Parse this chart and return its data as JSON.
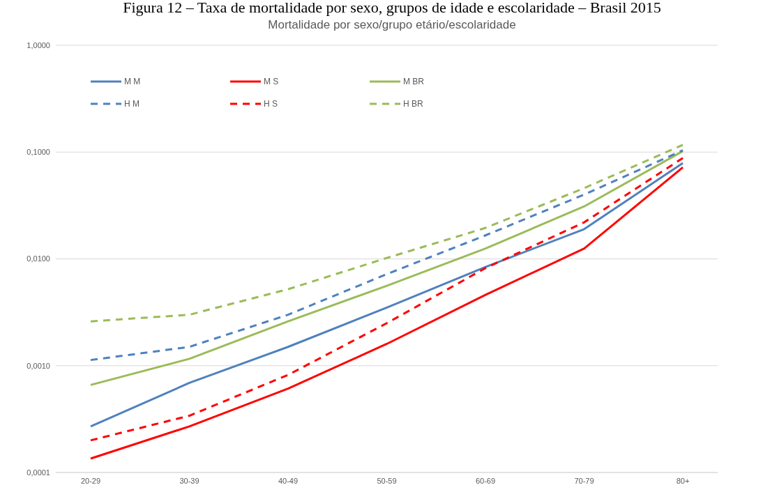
{
  "chart_data": {
    "type": "line",
    "title": "Figura 12 – Taxa de mortalidade por sexo, grupos de idade e escolaridade – Brasil 2015",
    "subtitle": "Mortalidade por sexo/grupo etário/escolaridade",
    "categories": [
      "20-29",
      "30-39",
      "40-49",
      "50-59",
      "60-69",
      "70-79",
      "80+"
    ],
    "log": "y",
    "ylim": [
      0.0001,
      1
    ],
    "yticks": [
      {
        "value": 0.0001,
        "label": "0,0001"
      },
      {
        "value": 0.001,
        "label": "0,0010"
      },
      {
        "value": 0.01,
        "label": "0,0100"
      },
      {
        "value": 0.1,
        "label": "0,1000"
      },
      {
        "value": 1,
        "label": "1,0000"
      }
    ],
    "grid": "y",
    "legend": "top left",
    "marker": "none",
    "series": [
      {
        "name": "M M",
        "color": "#4f81bd",
        "line_style": "solid",
        "values": [
          0.00027,
          0.00069,
          0.0015,
          0.0035,
          0.0084,
          0.019,
          0.079
        ]
      },
      {
        "name": "M S",
        "color": "#ff0000",
        "line_style": "solid",
        "values": [
          0.000135,
          0.00027,
          0.00061,
          0.0016,
          0.0046,
          0.0125,
          0.072
        ]
      },
      {
        "name": "M BR",
        "color": "#9bbb59",
        "line_style": "solid",
        "values": [
          0.00066,
          0.00116,
          0.0026,
          0.0056,
          0.0125,
          0.031,
          0.102
        ]
      },
      {
        "name": "H M",
        "color": "#4f81bd",
        "line_style": "dashed",
        "values": [
          0.00113,
          0.0015,
          0.003,
          0.0072,
          0.0166,
          0.04,
          0.104
        ]
      },
      {
        "name": "H S",
        "color": "#ff0000",
        "line_style": "dashed",
        "values": [
          0.0002,
          0.00034,
          0.00082,
          0.0025,
          0.0082,
          0.022,
          0.088
        ]
      },
      {
        "name": "H BR",
        "color": "#9bbb59",
        "line_style": "dashed",
        "values": [
          0.0026,
          0.003,
          0.0052,
          0.0102,
          0.0195,
          0.046,
          0.117
        ]
      }
    ]
  }
}
